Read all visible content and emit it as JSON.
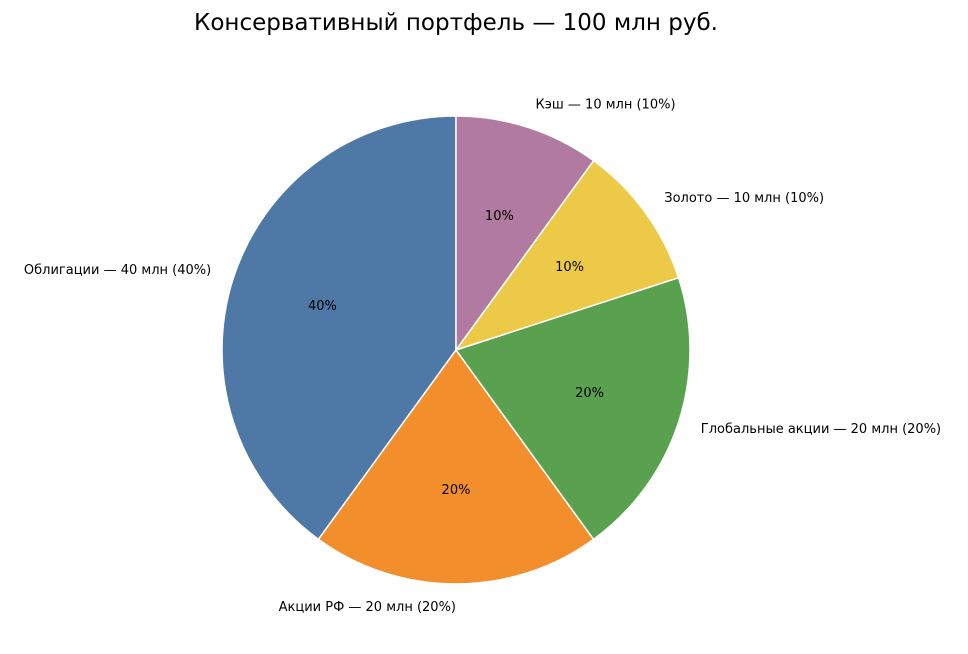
{
  "chart_data": {
    "type": "pie",
    "title": "Консервативный портфель — 100 млн руб.",
    "slices": [
      {
        "label": "Облигации — 40 млн (40%)",
        "value": 40,
        "pct_label": "40%",
        "color": "#4e79a7"
      },
      {
        "label": "Акции РФ — 20 млн (20%)",
        "value": 20,
        "pct_label": "20%",
        "color": "#f28e2b"
      },
      {
        "label": "Глобальные акции — 20 млн (20%)",
        "value": 20,
        "pct_label": "20%",
        "color": "#59a14f"
      },
      {
        "label": "Золото — 10 млн (10%)",
        "value": 10,
        "pct_label": "10%",
        "color": "#edc948"
      },
      {
        "label": "Кэш — 10 млн (10%)",
        "value": 10,
        "pct_label": "10%",
        "color": "#b07aa1"
      }
    ],
    "start_angle": "top",
    "direction": "counterclockwise"
  }
}
